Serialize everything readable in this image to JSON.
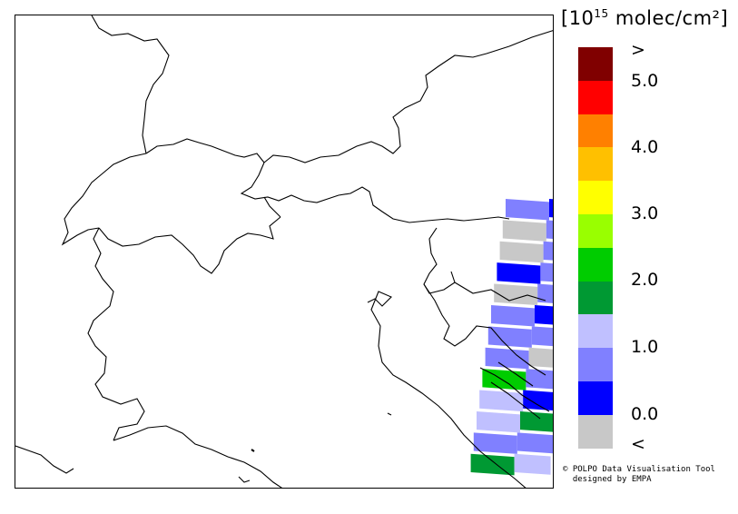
{
  "legend": {
    "unit_prefix": "[10",
    "unit_exp": "15",
    "unit_suffix": " molec/cm²]",
    "labels": [
      ">",
      "5.0",
      "4.0",
      "3.0",
      "2.0",
      "1.0",
      "0.0",
      "<"
    ],
    "colors": [
      "#800000",
      "#ff0000",
      "#ff8000",
      "#ffc000",
      "#ffff00",
      "#99ff00",
      "#00cc00",
      "#009933",
      "#c0c0ff",
      "#8080ff",
      "#0000ff",
      "#c8c8c8"
    ]
  },
  "credits": {
    "line1": "© POLPO Data Visualisation Tool",
    "line2": "designed by EMPA"
  },
  "map": {
    "background": "#ffffff",
    "boundary_color": "#000000",
    "swath_cells": [
      [
        "#8080ff",
        "#0000ff"
      ],
      [
        "#c8c8c8",
        "#8080ff"
      ],
      [
        "#c8c8c8",
        "#8080ff"
      ],
      [
        "#0000ff",
        "#8080ff"
      ],
      [
        "#c8c8c8",
        "#8080ff"
      ],
      [
        "#8080ff",
        "#0000ff"
      ],
      [
        "#8080ff",
        "#8080ff"
      ],
      [
        "#8080ff",
        "#c8c8c8"
      ],
      [
        "#00cc00",
        "#8080ff"
      ],
      [
        "#c0c0ff",
        "#0000ff"
      ],
      [
        "#c0c0ff",
        "#009933"
      ],
      [
        "#8080ff",
        "#8080ff"
      ],
      [
        "#009933",
        "#c0c0ff"
      ]
    ]
  }
}
